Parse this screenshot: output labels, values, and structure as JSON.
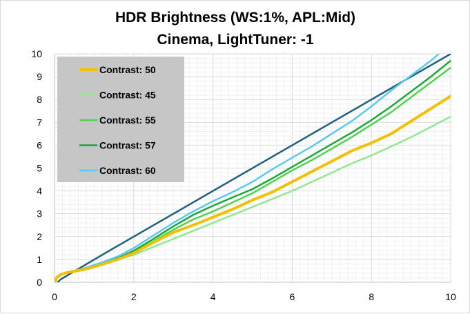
{
  "chart_data": {
    "type": "line",
    "title_lines": [
      "HDR Brightness (WS:1%, APL:Mid)",
      "Cinema, LightTuner: -1"
    ],
    "xlabel": "",
    "ylabel": "",
    "xlim": [
      0,
      10
    ],
    "ylim": [
      0,
      10
    ],
    "x_ticks": [
      0,
      2,
      4,
      6,
      8,
      10
    ],
    "y_ticks": [
      0,
      1,
      2,
      3,
      4,
      5,
      6,
      7,
      8,
      9,
      10
    ],
    "grid": true,
    "legend_position": "top-left",
    "reference_line": {
      "color": "#1f5f7f",
      "points": [
        [
          0.08,
          0.0
        ],
        [
          0.15,
          0.12
        ],
        [
          0.4,
          0.38
        ],
        [
          1.4,
          1.4
        ],
        [
          10,
          10
        ]
      ]
    },
    "series": [
      {
        "name": "Contrast: 50",
        "color": "#f2c000",
        "width": 4,
        "points": [
          [
            0.02,
            0.0
          ],
          [
            0.05,
            0.2
          ],
          [
            0.15,
            0.33
          ],
          [
            0.3,
            0.42
          ],
          [
            0.5,
            0.48
          ],
          [
            0.8,
            0.58
          ],
          [
            1.2,
            0.78
          ],
          [
            1.6,
            1.0
          ],
          [
            2.0,
            1.28
          ],
          [
            2.5,
            1.75
          ],
          [
            3.0,
            2.18
          ],
          [
            3.5,
            2.5
          ],
          [
            4.0,
            2.85
          ],
          [
            4.5,
            3.2
          ],
          [
            5.0,
            3.6
          ],
          [
            5.5,
            3.95
          ],
          [
            6.0,
            4.4
          ],
          [
            6.5,
            4.85
          ],
          [
            7.0,
            5.3
          ],
          [
            7.5,
            5.75
          ],
          [
            8.0,
            6.1
          ],
          [
            8.5,
            6.5
          ],
          [
            9.0,
            7.05
          ],
          [
            9.5,
            7.6
          ],
          [
            10.0,
            8.15
          ]
        ]
      },
      {
        "name": "Contrast: 45",
        "color": "#90e890",
        "width": 2.5,
        "points": [
          [
            0.02,
            0.0
          ],
          [
            0.05,
            0.2
          ],
          [
            0.15,
            0.33
          ],
          [
            0.3,
            0.42
          ],
          [
            0.5,
            0.48
          ],
          [
            0.8,
            0.58
          ],
          [
            1.2,
            0.78
          ],
          [
            1.6,
            1.0
          ],
          [
            2.0,
            1.2
          ],
          [
            2.5,
            1.55
          ],
          [
            3.0,
            1.9
          ],
          [
            3.5,
            2.25
          ],
          [
            4.0,
            2.6
          ],
          [
            4.5,
            2.95
          ],
          [
            5.0,
            3.3
          ],
          [
            5.5,
            3.65
          ],
          [
            6.0,
            4.0
          ],
          [
            6.5,
            4.4
          ],
          [
            7.0,
            4.8
          ],
          [
            7.5,
            5.2
          ],
          [
            8.0,
            5.55
          ],
          [
            8.5,
            5.95
          ],
          [
            9.0,
            6.35
          ],
          [
            9.5,
            6.8
          ],
          [
            10.0,
            7.25
          ]
        ]
      },
      {
        "name": "Contrast: 55",
        "color": "#4fd34f",
        "width": 2.5,
        "points": [
          [
            0.02,
            0.0
          ],
          [
            0.05,
            0.2
          ],
          [
            0.15,
            0.33
          ],
          [
            0.3,
            0.42
          ],
          [
            0.5,
            0.48
          ],
          [
            0.8,
            0.58
          ],
          [
            1.2,
            0.78
          ],
          [
            1.6,
            1.0
          ],
          [
            2.0,
            1.3
          ],
          [
            2.5,
            1.8
          ],
          [
            3.0,
            2.3
          ],
          [
            3.5,
            2.75
          ],
          [
            4.0,
            3.1
          ],
          [
            4.5,
            3.5
          ],
          [
            5.0,
            3.9
          ],
          [
            5.5,
            4.4
          ],
          [
            6.0,
            4.9
          ],
          [
            6.5,
            5.35
          ],
          [
            7.0,
            5.85
          ],
          [
            7.5,
            6.35
          ],
          [
            8.0,
            6.9
          ],
          [
            8.5,
            7.45
          ],
          [
            9.0,
            8.1
          ],
          [
            9.5,
            8.75
          ],
          [
            10.0,
            9.4
          ]
        ]
      },
      {
        "name": "Contrast: 57",
        "color": "#18a83a",
        "width": 2.5,
        "points": [
          [
            0.02,
            0.0
          ],
          [
            0.05,
            0.2
          ],
          [
            0.15,
            0.33
          ],
          [
            0.3,
            0.42
          ],
          [
            0.5,
            0.48
          ],
          [
            0.8,
            0.6
          ],
          [
            1.2,
            0.82
          ],
          [
            1.6,
            1.05
          ],
          [
            2.0,
            1.38
          ],
          [
            2.5,
            1.9
          ],
          [
            3.0,
            2.45
          ],
          [
            3.5,
            2.95
          ],
          [
            4.0,
            3.35
          ],
          [
            4.5,
            3.72
          ],
          [
            5.0,
            4.08
          ],
          [
            5.5,
            4.55
          ],
          [
            6.0,
            5.05
          ],
          [
            6.5,
            5.55
          ],
          [
            7.0,
            6.05
          ],
          [
            7.5,
            6.55
          ],
          [
            8.0,
            7.1
          ],
          [
            8.5,
            7.7
          ],
          [
            9.0,
            8.35
          ],
          [
            9.5,
            9.0
          ],
          [
            10.0,
            9.7
          ]
        ]
      },
      {
        "name": "Contrast: 60",
        "color": "#5bc8f0",
        "width": 2.5,
        "points": [
          [
            0.02,
            0.0
          ],
          [
            0.05,
            0.2
          ],
          [
            0.15,
            0.33
          ],
          [
            0.3,
            0.42
          ],
          [
            0.5,
            0.5
          ],
          [
            0.8,
            0.64
          ],
          [
            1.2,
            0.87
          ],
          [
            1.6,
            1.13
          ],
          [
            2.0,
            1.5
          ],
          [
            2.5,
            2.05
          ],
          [
            3.0,
            2.6
          ],
          [
            3.5,
            3.1
          ],
          [
            4.0,
            3.55
          ],
          [
            4.5,
            3.95
          ],
          [
            5.0,
            4.4
          ],
          [
            5.5,
            4.95
          ],
          [
            6.0,
            5.45
          ],
          [
            6.5,
            5.95
          ],
          [
            7.0,
            6.5
          ],
          [
            7.5,
            7.05
          ],
          [
            8.0,
            7.7
          ],
          [
            8.5,
            8.4
          ],
          [
            9.0,
            9.05
          ],
          [
            9.5,
            9.7
          ],
          [
            9.7,
            10.0
          ]
        ]
      }
    ]
  }
}
